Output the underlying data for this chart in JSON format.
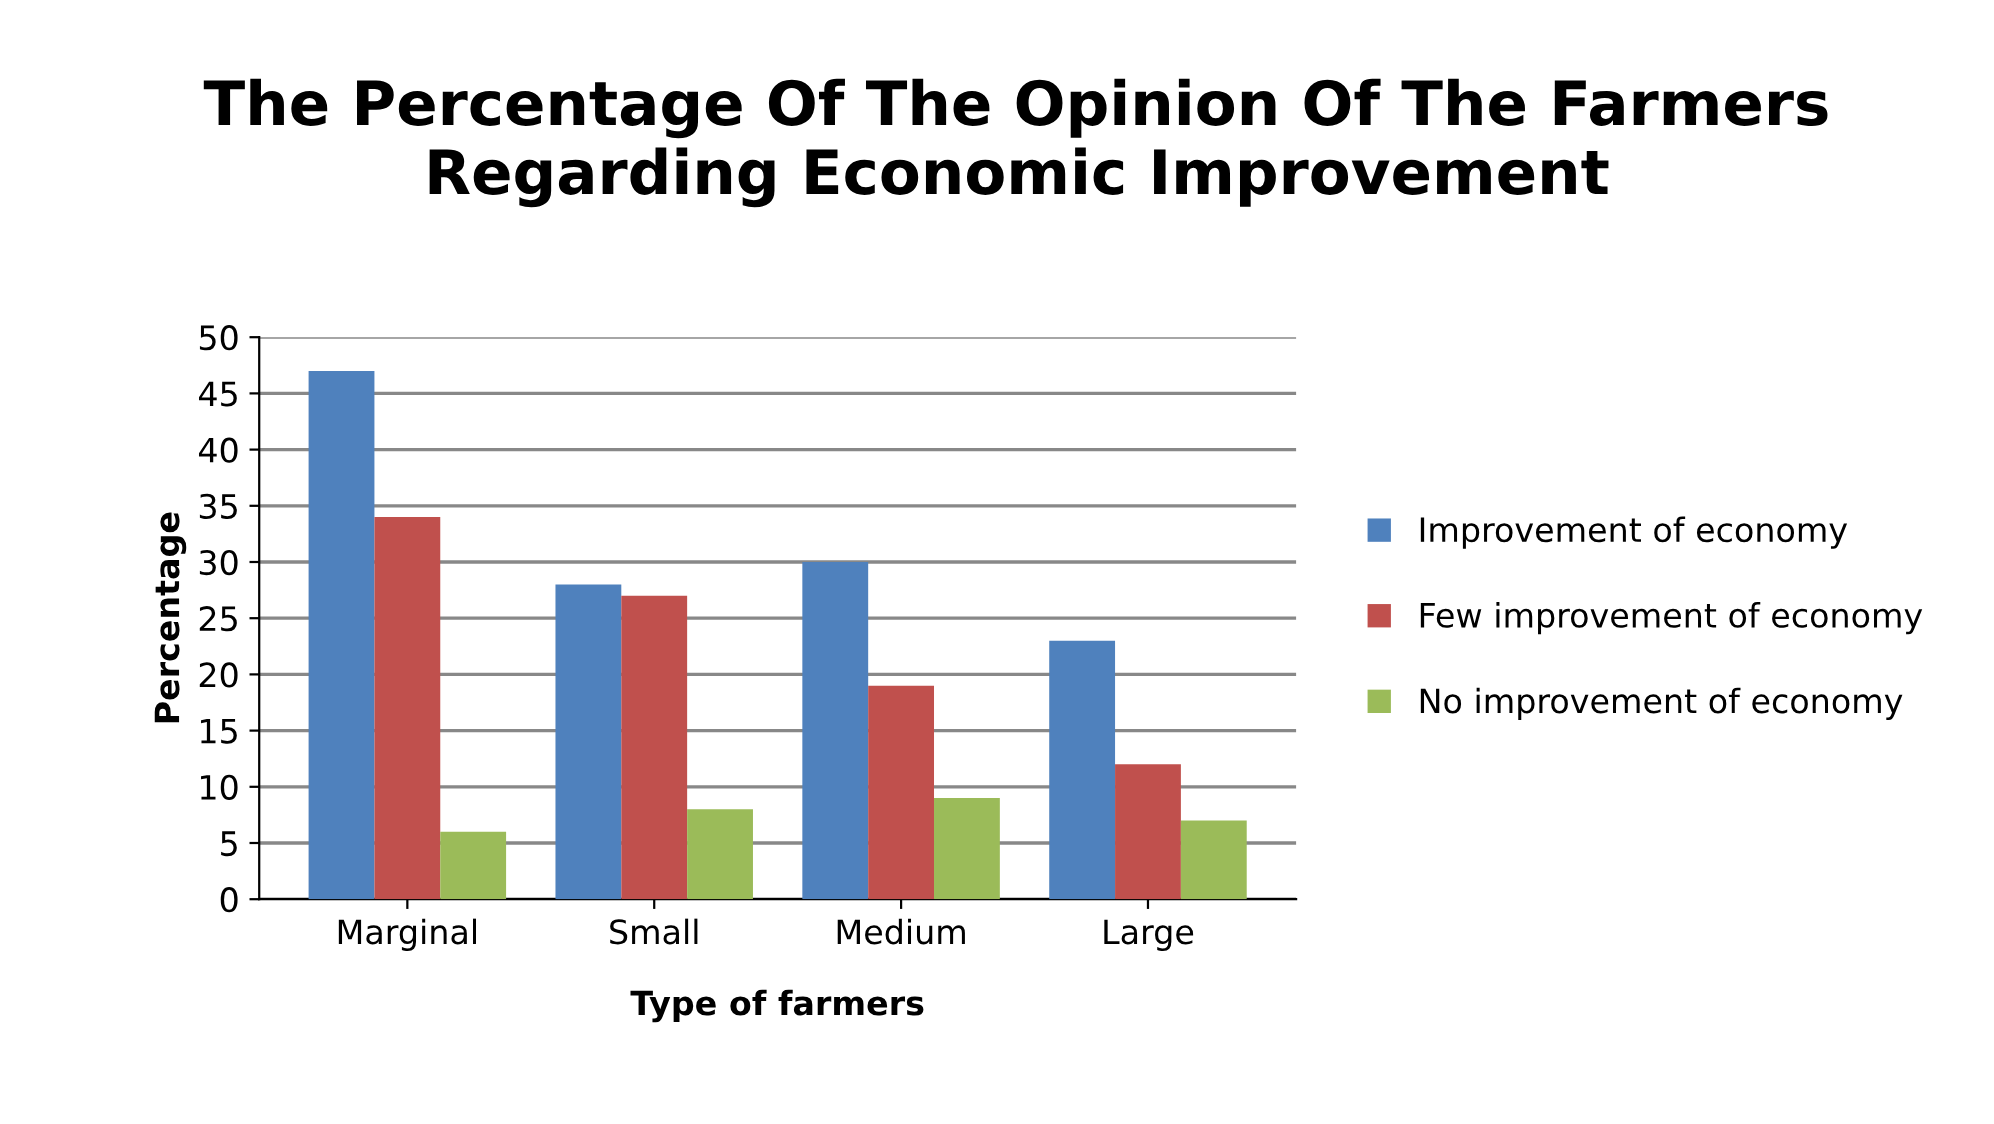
{
  "chart_data": {
    "type": "bar",
    "title": "The Percentage Of The Opinion Of The Farmers Regarding Economic Improvement",
    "xlabel": "Type of farmers",
    "ylabel": "Percentage",
    "categories": [
      "Marginal",
      "Small",
      "Medium",
      "Large"
    ],
    "series": [
      {
        "name": "Improvement of economy",
        "color": "#4f81bd",
        "values": [
          47,
          28,
          30,
          23
        ]
      },
      {
        "name": "Few improvement of economy",
        "color": "#c0504d",
        "values": [
          34,
          27,
          19,
          12
        ]
      },
      {
        "name": "No improvement of economy",
        "color": "#9bbb59",
        "values": [
          6,
          8,
          9,
          7
        ]
      }
    ],
    "ylim": [
      0,
      50
    ],
    "yticks": [
      0,
      5,
      10,
      15,
      20,
      25,
      30,
      35,
      40,
      45,
      50
    ],
    "grid": "y",
    "legend": "right"
  }
}
